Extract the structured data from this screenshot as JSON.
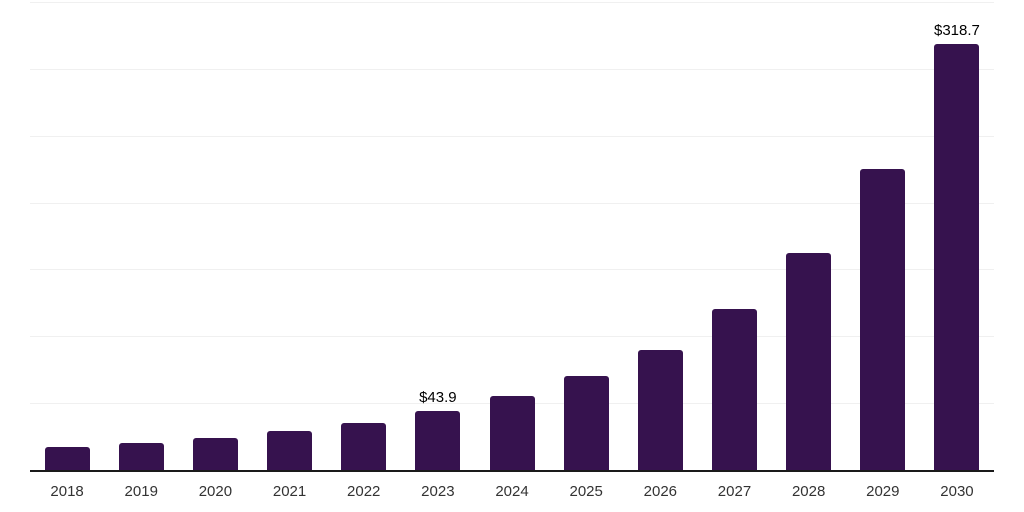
{
  "chart_data": {
    "type": "bar",
    "title": "",
    "xlabel": "",
    "ylabel": "",
    "categories": [
      "2018",
      "2019",
      "2020",
      "2021",
      "2022",
      "2023",
      "2024",
      "2025",
      "2026",
      "2027",
      "2028",
      "2029",
      "2030"
    ],
    "values": [
      17.2,
      20.3,
      23.7,
      29.4,
      35.2,
      43.9,
      55.0,
      70.6,
      90.0,
      120.3,
      162.0,
      225.0,
      318.7
    ],
    "point_labels": [
      "",
      "",
      "",
      "",
      "",
      "$43.9",
      "",
      "",
      "",
      "",
      "",
      "",
      "$318.7"
    ],
    "ylim": [
      0,
      350
    ],
    "gridline_interval": 50,
    "grid": "horizontal-only",
    "legend": "none",
    "y_axis_labels_visible": false,
    "colors": {
      "bar": "#36124e",
      "axis": "#1a1a1a",
      "gridline": "#f0f0f0",
      "data_label": "#000000",
      "tick_label": "#333333",
      "background": "#ffffff"
    }
  }
}
